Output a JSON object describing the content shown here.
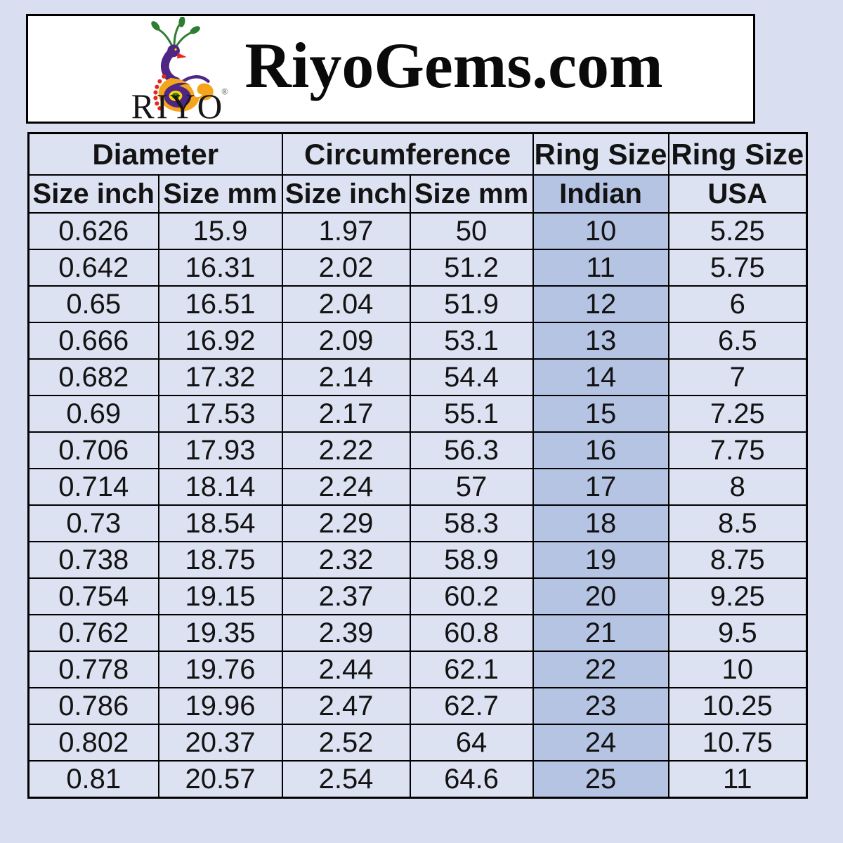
{
  "header": {
    "title": "RiyoGems.com",
    "logo": {
      "brand": "RIYO",
      "registered_mark": "®",
      "icon": "peacock-logo-icon",
      "colors": {
        "purple": "#4f2585",
        "green": "#2e7d32",
        "orange": "#f5a51c",
        "red": "#e4271c",
        "yellow": "#ffd400"
      }
    }
  },
  "table": {
    "group_headers": [
      {
        "label": "Diameter",
        "colspan": 2
      },
      {
        "label": "Circumference",
        "colspan": 2
      },
      {
        "label": "Ring Size",
        "colspan": 1
      },
      {
        "label": "Ring Size",
        "colspan": 1
      }
    ],
    "sub_headers": [
      "Size inch",
      "Size mm",
      "Size inch",
      "Size mm",
      "Indian",
      "USA"
    ],
    "rows": [
      [
        "0.626",
        "15.9",
        "1.97",
        "50",
        "10",
        "5.25"
      ],
      [
        "0.642",
        "16.31",
        "2.02",
        "51.2",
        "11",
        "5.75"
      ],
      [
        "0.65",
        "16.51",
        "2.04",
        "51.9",
        "12",
        "6"
      ],
      [
        "0.666",
        "16.92",
        "2.09",
        "53.1",
        "13",
        "6.5"
      ],
      [
        "0.682",
        "17.32",
        "2.14",
        "54.4",
        "14",
        "7"
      ],
      [
        "0.69",
        "17.53",
        "2.17",
        "55.1",
        "15",
        "7.25"
      ],
      [
        "0.706",
        "17.93",
        "2.22",
        "56.3",
        "16",
        "7.75"
      ],
      [
        "0.714",
        "18.14",
        "2.24",
        "57",
        "17",
        "8"
      ],
      [
        "0.73",
        "18.54",
        "2.29",
        "58.3",
        "18",
        "8.5"
      ],
      [
        "0.738",
        "18.75",
        "2.32",
        "58.9",
        "19",
        "8.75"
      ],
      [
        "0.754",
        "19.15",
        "2.37",
        "60.2",
        "20",
        "9.25"
      ],
      [
        "0.762",
        "19.35",
        "2.39",
        "60.8",
        "21",
        "9.5"
      ],
      [
        "0.778",
        "19.76",
        "2.44",
        "62.1",
        "22",
        "10"
      ],
      [
        "0.786",
        "19.96",
        "2.47",
        "62.7",
        "23",
        "10.25"
      ],
      [
        "0.802",
        "20.37",
        "2.52",
        "64",
        "24",
        "10.75"
      ],
      [
        "0.81",
        "20.57",
        "2.54",
        "64.6",
        "25",
        "11"
      ]
    ],
    "colors": {
      "page_background": "#d9dff0",
      "cell_background": "#dde2f2",
      "highlight_column_background": "#b6c4e3",
      "border": "#000000"
    }
  }
}
